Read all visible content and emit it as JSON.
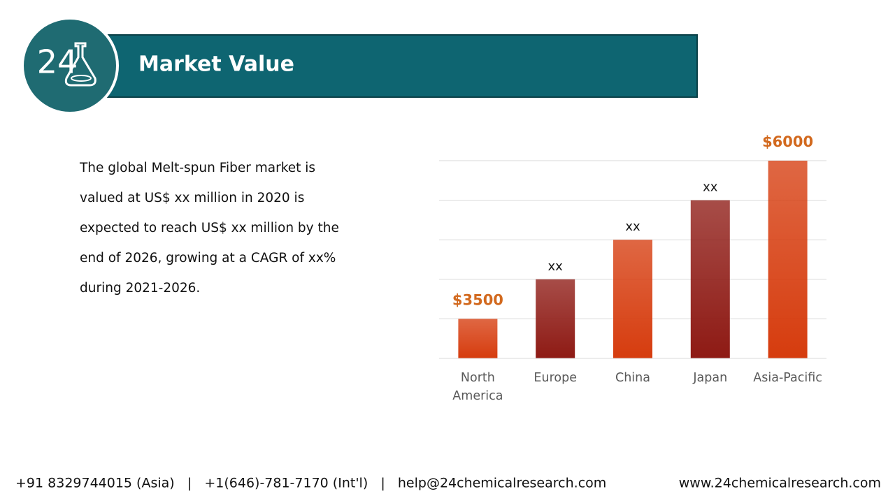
{
  "header": {
    "logo_text": "24",
    "title": "Market Value"
  },
  "body": {
    "lines": [
      "The global Melt-spun Fiber market is",
      "valued at US$ xx million in 2020 is",
      "expected to reach US$ xx million by the",
      "end of 2026, growing at a CAGR of xx%",
      "during 2021-2026."
    ]
  },
  "chart_data": {
    "type": "bar",
    "categories": [
      "North America",
      "Europe",
      "China",
      "Japan",
      "Asia-Pacific"
    ],
    "values": [
      3500,
      4125,
      4750,
      5375,
      6000
    ],
    "value_labels": [
      "$3500",
      "xx",
      "xx",
      "xx",
      "$6000"
    ],
    "value_label_colors": [
      "#d2691e",
      "#111111",
      "#111111",
      "#111111",
      "#d2691e"
    ],
    "colors": [
      "#d63c0e",
      "#8e1a14",
      "#d63c0e",
      "#8e1a14",
      "#d63c0e"
    ],
    "ylim": [
      2875,
      6000
    ],
    "yticks": [
      2875,
      3500,
      4125,
      4750,
      5375,
      6000
    ],
    "grid": true
  },
  "footer": {
    "contact": "+91 8329744015 (Asia)   |   +1(646)-781-7170 (Int'l)   |   help@24chemicalresearch.com",
    "website": "www.24chemicalresearch.com"
  }
}
